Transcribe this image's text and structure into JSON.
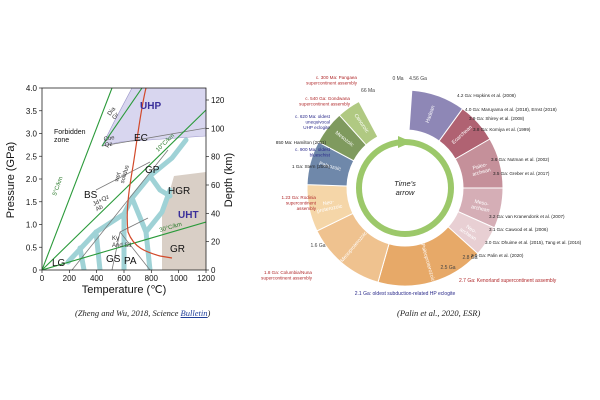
{
  "left_diagram": {
    "y_axis_label": "Pressure (GPa)",
    "x_axis_label": "Temperature (℃)",
    "right_axis_label": "Depth (km)",
    "x_ticks": [
      "0",
      "200",
      "400",
      "600",
      "800",
      "1000",
      "1200"
    ],
    "y_ticks": [
      "0",
      "0.5",
      "1.0",
      "1.5",
      "2.0",
      "2.5",
      "3.0",
      "3.5",
      "4.0"
    ],
    "depth_ticks": [
      "0",
      "20",
      "40",
      "60",
      "80",
      "100",
      "120"
    ],
    "fields": {
      "uhp": "UHP",
      "uht": "UHT",
      "ec": "EC",
      "bs": "BS",
      "gp": "GP",
      "hgr": "HGR",
      "gr": "GR",
      "gs": "GS",
      "lg": "LG",
      "pa": "PA",
      "forbidden": "Forbidden\nzone"
    },
    "line_labels": {
      "dia_gr": "Dia\nGr",
      "coe_qz": "Coe\nQz",
      "jd_qz_ab": "Jd+Qz\nAb",
      "wet_solidus": "wet\nsolidus",
      "ky_and_sil": "Ky\nAnd Sil",
      "g5": "5°C/km",
      "g10": "10°C/km",
      "g30": "30°C/km"
    },
    "colors": {
      "uhp": "#d8d6ef",
      "uht": "#d9cfc6",
      "channel": "#9fd2d6",
      "gradient": "#2a9a3a",
      "solidus": "#d2492a",
      "uhp_text": "#3a2f9a"
    }
  },
  "right_diagram": {
    "center_text": "Time's\narrow",
    "top_time_labels": [
      "0 Ma",
      "66 Ma",
      "4.56 Ga"
    ],
    "mid_time_labels": [
      "1.6 Ga",
      "2.5 Ga",
      "2.8 Ga"
    ],
    "segments": [
      {
        "name": "Hadean",
        "color": "#8e87b6"
      },
      {
        "name": "Eoarchean",
        "color": "#b06272"
      },
      {
        "name": "Paleo-\narchean",
        "color": "#c5909a"
      },
      {
        "name": "Meso-\narchean",
        "color": "#d5aeb6"
      },
      {
        "name": "Neo-\narchean",
        "color": "#e8cfd3"
      },
      {
        "name": "Paleoproterozoic",
        "color": "#e7a968"
      },
      {
        "name": "Mesoproterozoic",
        "color": "#efc28f"
      },
      {
        "name": "Neo-\nproterozoic",
        "color": "#f5d6a8"
      },
      {
        "name": "Paleozoic",
        "color": "#6f88aa"
      },
      {
        "name": "Mesozoic",
        "color": "#7f9a5e"
      },
      {
        "name": "Cenozoic",
        "color": "#b0c982"
      }
    ],
    "annotations_right": [
      "4.2 Ga: Hopkins et al. (2008)",
      "4.0 Ga: Maruyama et al. (2018), Ernst (2018)",
      "3.9 Ga: Shirey et al. (2008)",
      "3.8 Ga: Komiya et al. (1999)",
      "3.6 Ga: Nutman et al. (2002)",
      "3.5 Ga: Greber et al. (2017)",
      "3.2 Ga: van Kranendonk et al. (2007)",
      "3.1 Ga: Cawood et al. (2006)",
      "3.0 Ga: Dhuime et al. (2015), Tang et al. (2016)",
      "2.9 Ga: Palin et al. (2020)"
    ],
    "kenorland": "2.7 Ga: Kenorland supercontinent assembly",
    "annotations_left": [
      {
        "text": "c. 300 Ma: Pangaea\nsupercontinent assembly",
        "color": "#b0282a"
      },
      {
        "text": "c. 540 Ga: Gondwana\nsupercontinent assembly",
        "color": "#b0282a"
      },
      {
        "text": "c. 620 Ma: oldest\nunequivocal\nUHP eclogite",
        "color": "#2a2a8a"
      },
      {
        "text": "850 Ma: Hamilton (2011)",
        "color": "#222222"
      },
      {
        "text": "c. 900 Ma: oldest\nblueschist",
        "color": "#2a2a8a"
      },
      {
        "text": "1 Ga: Stern (2005)",
        "color": "#222222"
      },
      {
        "text": "1.23 Ga: Rodinia\nsupercontinent\nassembly",
        "color": "#b0282a"
      },
      {
        "text": "1.8 Ga: Columbia/Nuna\nsupercontinent assembly",
        "color": "#b0282a"
      }
    ],
    "bottom_annotation": "2.1 Ga: oldest subduction-related HP eclogite"
  },
  "captions": {
    "left_prefix": "(Zheng and Wu, 2018, Science ",
    "left_link": "Bulletin",
    "left_suffix": ")",
    "right": "(Palin et al., 2020, ESR)"
  }
}
